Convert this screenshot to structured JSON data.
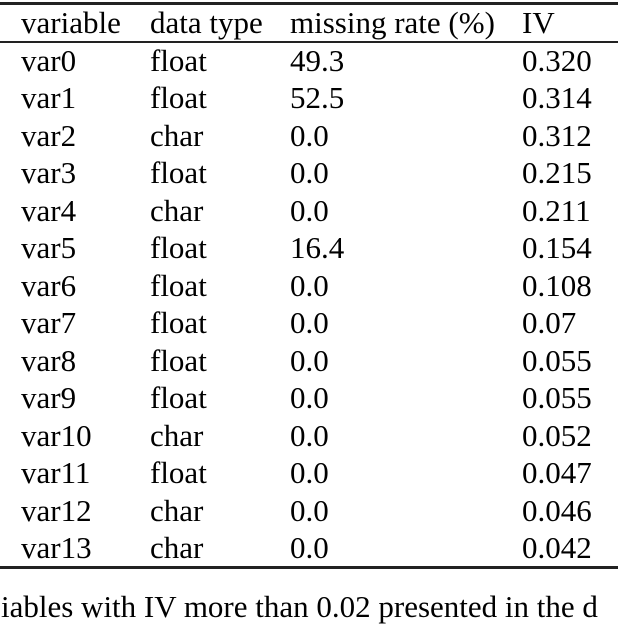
{
  "page": {
    "background": "#ffffff",
    "text_color": "#000000",
    "rule_color": "#222222"
  },
  "chart_data": {
    "type": "table",
    "columns": [
      "variable",
      "data type",
      "missing rate (%)",
      "IV"
    ],
    "column_keys": [
      "variable",
      "data-type",
      "missing-rate",
      "iv"
    ],
    "rows": [
      [
        "var0",
        "float",
        "49.3",
        "0.320"
      ],
      [
        "var1",
        "float",
        "52.5",
        "0.314"
      ],
      [
        "var2",
        "char",
        "0.0",
        "0.312"
      ],
      [
        "var3",
        "float",
        "0.0",
        "0.215"
      ],
      [
        "var4",
        "char",
        "0.0",
        "0.211"
      ],
      [
        "var5",
        "float",
        "16.4",
        "0.154"
      ],
      [
        "var6",
        "float",
        "0.0",
        "0.108"
      ],
      [
        "var7",
        "float",
        "0.0",
        "0.07"
      ],
      [
        "var8",
        "float",
        "0.0",
        "0.055"
      ],
      [
        "var9",
        "float",
        "0.0",
        "0.055"
      ],
      [
        "var10",
        "char",
        "0.0",
        "0.052"
      ],
      [
        "var11",
        "float",
        "0.0",
        "0.047"
      ],
      [
        "var12",
        "char",
        "0.0",
        "0.046"
      ],
      [
        "var13",
        "char",
        "0.0",
        "0.042"
      ]
    ]
  },
  "caption": {
    "visible_fragment": "iables with IV more than 0.02 presented in the d"
  }
}
